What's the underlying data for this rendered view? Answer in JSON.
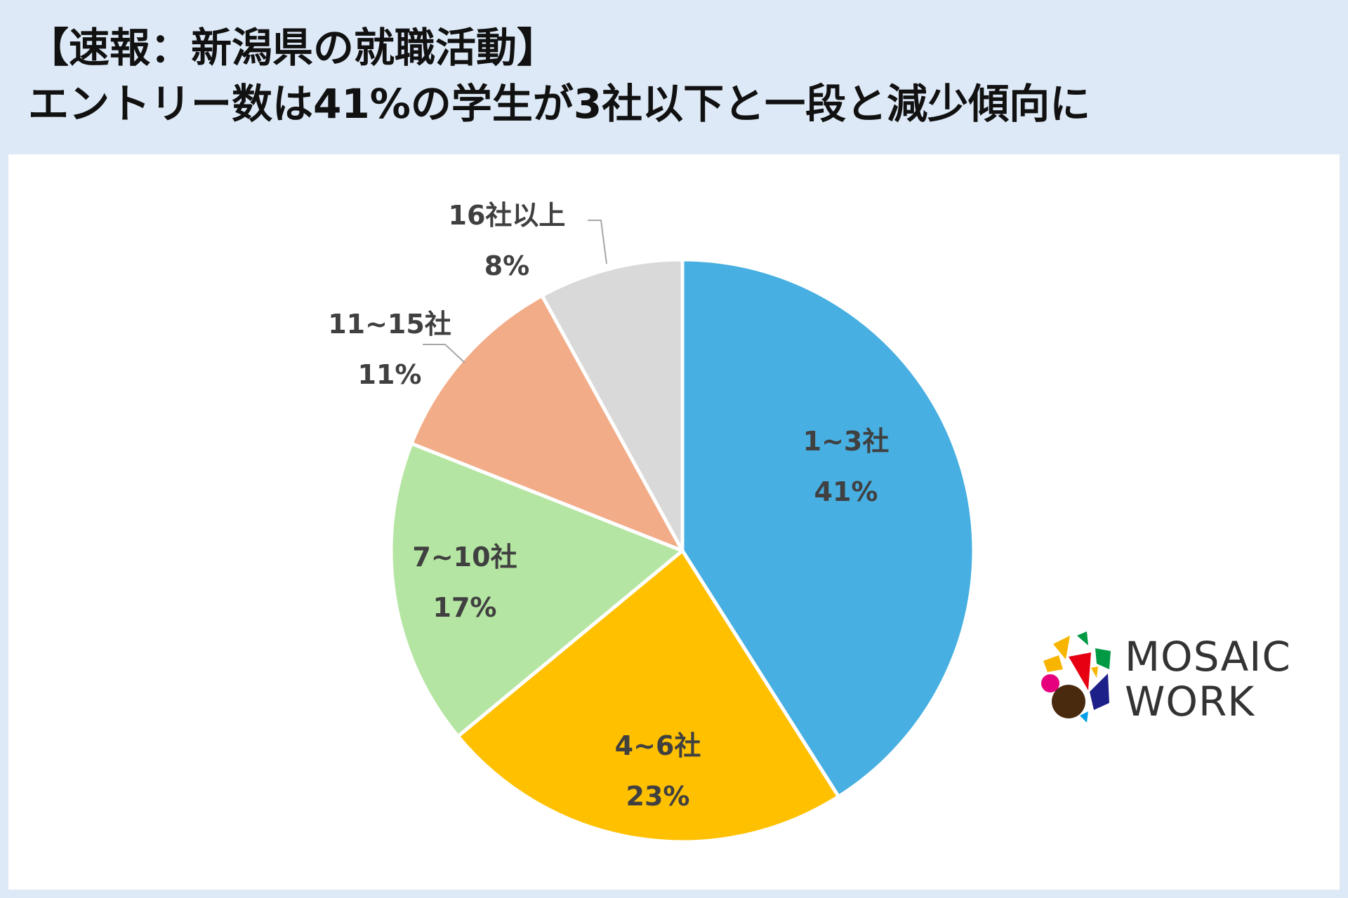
{
  "title": {
    "line1": "【速報：新潟県の就職活動】",
    "line2": "エントリー数は41%の学生が3社以下と一段と減少傾向に"
  },
  "chart_data": {
    "type": "pie",
    "start_angle_deg": 0,
    "direction": "clockwise",
    "slices": [
      {
        "label": "1~3社",
        "value": 41,
        "value_label": "41%",
        "color": "#47afe1"
      },
      {
        "label": "4~6社",
        "value": 23,
        "value_label": "23%",
        "color": "#ffc000"
      },
      {
        "label": "7~10社",
        "value": 17,
        "value_label": "17%",
        "color": "#b5e5a2"
      },
      {
        "label": "11~15社",
        "value": 11,
        "value_label": "11%",
        "color": "#f2ac88"
      },
      {
        "label": "16社以上",
        "value": 8,
        "value_label": "8%",
        "color": "#d9d9d9"
      }
    ]
  },
  "logo": {
    "line1": "MOSAIC",
    "line2": "WORK",
    "colors": [
      "#e6007e",
      "#4a2a0f",
      "#e60012",
      "#1d2088",
      "#009944",
      "#f8b500",
      "#00a0e9"
    ]
  }
}
